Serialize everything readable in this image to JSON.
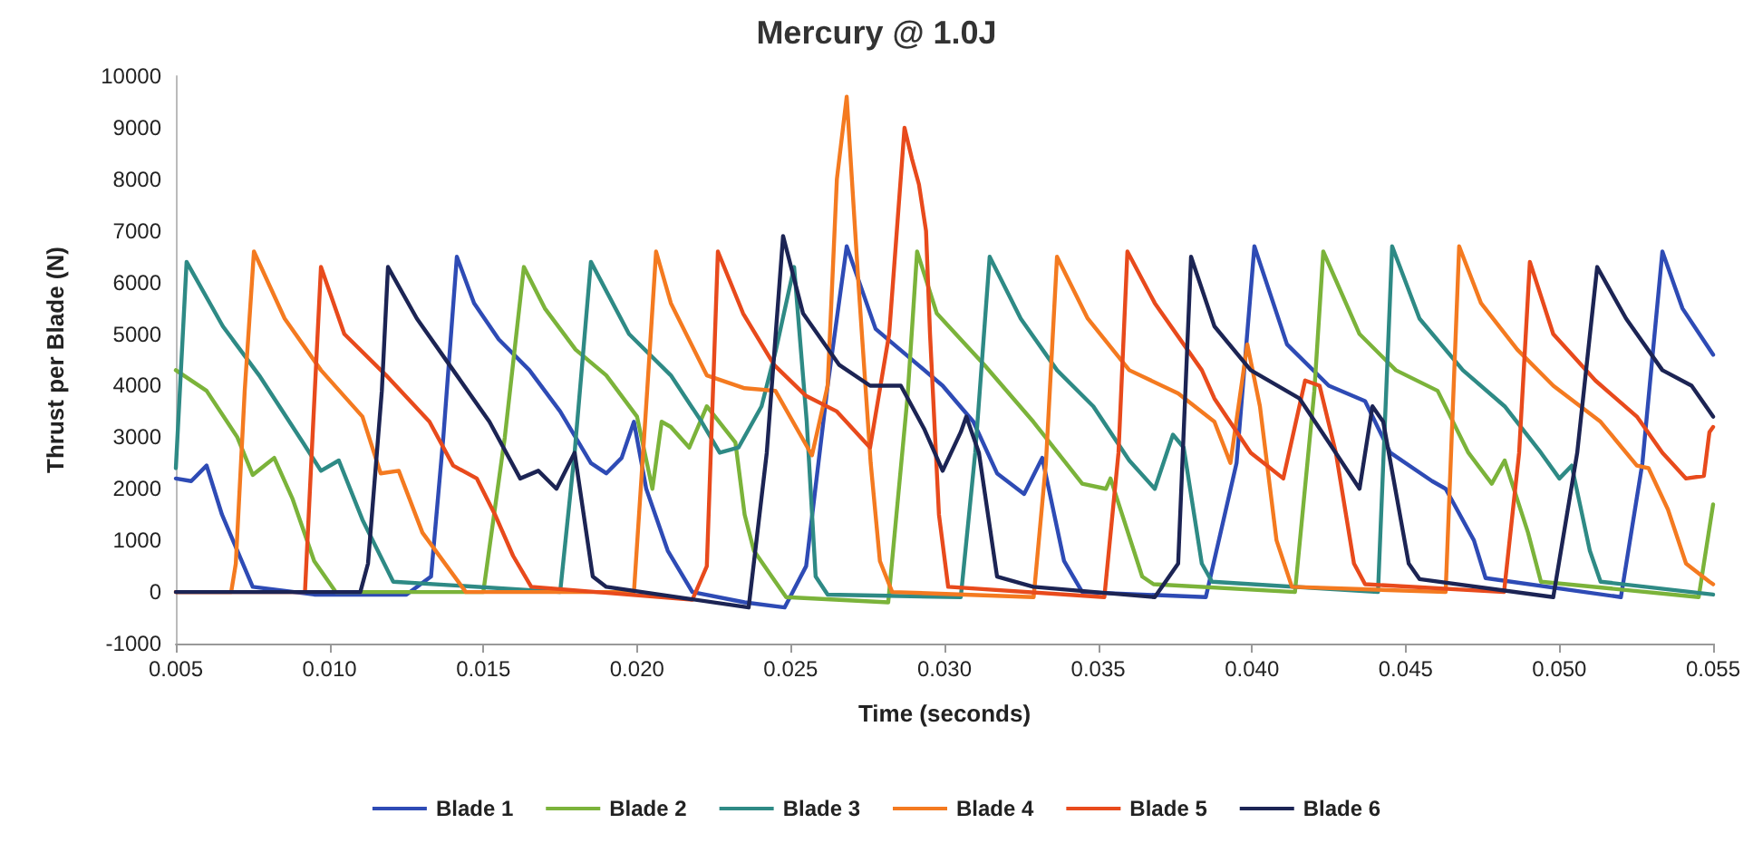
{
  "chart_data": {
    "type": "line",
    "title": "Mercury @ 1.0J",
    "xlabel": "Time (seconds)",
    "ylabel": "Thrust per Blade (N)",
    "xlim": [
      0.005,
      0.055
    ],
    "xticks": [
      0.005,
      {
        "value": 0.01,
        "label": "0.010"
      },
      0.015,
      {
        "value": 0.02,
        "label": "0.020"
      },
      0.025,
      {
        "value": 0.03,
        "label": "0.030"
      },
      0.035,
      {
        "value": 0.04,
        "label": "0.040"
      },
      0.045,
      {
        "value": 0.05,
        "label": "0.050"
      },
      0.055
    ],
    "ylim": [
      -1000,
      10000
    ],
    "yticks": [
      -1000,
      0,
      1000,
      2000,
      3000,
      4000,
      5000,
      6000,
      7000,
      8000,
      9000,
      10000
    ],
    "grid": false,
    "legend": "bottom",
    "marker": "none",
    "line_style": "solid",
    "series": [
      {
        "name": "Blade 1",
        "color": "#2e4bb5",
        "x": [
          0.005,
          0.0055,
          0.006,
          0.0065,
          0.0075,
          0.0095,
          0.0125,
          0.0133,
          0.0137,
          0.01414,
          0.0147,
          0.0155,
          0.0165,
          0.0175,
          0.0185,
          0.019,
          0.0195,
          0.0199,
          0.0203,
          0.021,
          0.0218,
          0.0235,
          0.0248,
          0.0255,
          0.0262,
          0.02682,
          0.02776,
          0.02994,
          0.03094,
          0.03171,
          0.03259,
          0.03318,
          0.03389,
          0.03448,
          0.0385,
          0.0395,
          0.04008,
          0.04114,
          0.0425,
          0.04368,
          0.0445,
          0.04586,
          0.0463,
          0.04722,
          0.0476,
          0.052,
          0.0527,
          0.05335,
          0.054,
          0.055
        ],
        "values": [
          2200,
          2150,
          2450,
          1500,
          100,
          -50,
          -50,
          300,
          3000,
          6500,
          5600,
          4900,
          4300,
          3500,
          2500,
          2300,
          2600,
          3300,
          2000,
          800,
          0,
          -200,
          -300,
          500,
          4000,
          6700,
          5100,
          4000,
          3300,
          2300,
          1900,
          2600,
          600,
          0,
          -100,
          2500,
          6700,
          4800,
          4000,
          3700,
          2700,
          2150,
          2000,
          1000,
          270,
          -100,
          2500,
          6600,
          5500,
          4600
        ]
      },
      {
        "name": "Blade 2",
        "color": "#7bb33a",
        "x": [
          0.005,
          0.006,
          0.007,
          0.0075,
          0.0082,
          0.0088,
          0.0095,
          0.0102,
          0.015,
          0.0157,
          0.01632,
          0.017,
          0.018,
          0.019,
          0.02,
          0.0205,
          0.0208,
          0.0211,
          0.0217,
          0.02227,
          0.0232,
          0.0235,
          0.0238,
          0.0245,
          0.02485,
          0.02817,
          0.0288,
          0.02911,
          0.02975,
          0.0313,
          0.03289,
          0.03448,
          0.03525,
          0.0354,
          0.03643,
          0.0368,
          0.0414,
          0.04203,
          0.04232,
          0.0435,
          0.04468,
          0.04604,
          0.04704,
          0.0478,
          0.04822,
          0.04898,
          0.0494,
          0.05453,
          0.055
        ],
        "values": [
          4300,
          3900,
          3000,
          2270,
          2600,
          1800,
          600,
          0,
          0,
          3000,
          6300,
          5500,
          4700,
          4200,
          3400,
          2000,
          3300,
          3200,
          2800,
          3600,
          2900,
          1500,
          800,
          200,
          -100,
          -200,
          3800,
          6600,
          5400,
          4400,
          3300,
          2100,
          2000,
          2200,
          300,
          150,
          0,
          3900,
          6600,
          5000,
          4300,
          3900,
          2700,
          2100,
          2550,
          1150,
          200,
          -100,
          1700
        ]
      },
      {
        "name": "Blade 3",
        "color": "#2e8a85",
        "x": [
          0.005,
          0.00535,
          0.00653,
          0.00771,
          0.00913,
          0.00972,
          0.0103,
          0.01107,
          0.01207,
          0.0175,
          0.01797,
          0.0185,
          0.01974,
          0.0211,
          0.0221,
          0.02269,
          0.0233,
          0.02405,
          0.02452,
          0.02511,
          0.02552,
          0.02581,
          0.0262,
          0.03053,
          0.031,
          0.03147,
          0.03248,
          0.03366,
          0.03484,
          0.03601,
          0.03684,
          0.03743,
          0.03778,
          0.03837,
          0.0387,
          0.0441,
          0.04456,
          0.04545,
          0.04686,
          0.04822,
          0.0494,
          0.05,
          0.0504,
          0.05099,
          0.05134,
          0.055
        ],
        "values": [
          2400,
          6400,
          5150,
          4200,
          2900,
          2350,
          2550,
          1400,
          200,
          0,
          2700,
          6400,
          5000,
          4200,
          3300,
          2700,
          2800,
          3600,
          4700,
          6300,
          3300,
          300,
          -50,
          -100,
          2700,
          6500,
          5300,
          4300,
          3600,
          2550,
          2000,
          3050,
          2800,
          550,
          200,
          0,
          6700,
          5300,
          4300,
          3600,
          2700,
          2200,
          2450,
          800,
          200,
          -50
        ]
      },
      {
        "name": "Blade 4",
        "color": "#f47a20",
        "x": [
          0.005,
          0.0068,
          0.00695,
          0.00724,
          0.00754,
          0.00854,
          0.00972,
          0.01107,
          0.01166,
          0.01225,
          0.01302,
          0.01443,
          0.0199,
          0.02033,
          0.02062,
          0.0211,
          0.02227,
          0.0235,
          0.0245,
          0.02569,
          0.0262,
          0.0265,
          0.02682,
          0.0272,
          0.0276,
          0.0279,
          0.0283,
          0.0329,
          0.0333,
          0.03366,
          0.03466,
          0.03601,
          0.0376,
          0.03878,
          0.0393,
          0.03985,
          0.04026,
          0.0408,
          0.0413,
          0.0463,
          0.04674,
          0.04745,
          0.04863,
          0.0498,
          0.05134,
          0.05252,
          0.0529,
          0.05353,
          0.05412,
          0.05488,
          0.055
        ],
        "values": [
          0,
          0,
          550,
          3900,
          6600,
          5300,
          4300,
          3400,
          2300,
          2350,
          1150,
          0,
          0,
          3900,
          6600,
          5600,
          4200,
          3950,
          3900,
          2650,
          4000,
          8000,
          9600,
          6000,
          2500,
          600,
          0,
          -100,
          2500,
          6500,
          5300,
          4300,
          3850,
          3300,
          2500,
          4800,
          3600,
          1000,
          100,
          0,
          6700,
          5600,
          4700,
          4000,
          3300,
          2450,
          2400,
          1600,
          550,
          200,
          150
        ]
      },
      {
        "name": "Blade 5",
        "color": "#e84a1c",
        "x": [
          0.005,
          0.0092,
          0.00942,
          0.00972,
          0.01048,
          0.01184,
          0.01325,
          0.01402,
          0.01479,
          0.01538,
          0.01597,
          0.01656,
          0.0218,
          0.02227,
          0.02263,
          0.02345,
          0.02446,
          0.0255,
          0.0265,
          0.02758,
          0.0282,
          0.0287,
          0.02894,
          0.02917,
          0.0294,
          0.02953,
          0.02982,
          0.03012,
          0.0352,
          0.03566,
          0.03595,
          0.03684,
          0.03837,
          0.03878,
          0.03996,
          0.04102,
          0.04173,
          0.0422,
          0.04273,
          0.04332,
          0.04368,
          0.0482,
          0.04869,
          0.04904,
          0.0498,
          0.05117,
          0.05252,
          0.05335,
          0.05412,
          0.0547,
          0.05488,
          0.055
        ],
        "values": [
          0,
          0,
          2700,
          6300,
          5000,
          4200,
          3300,
          2450,
          2200,
          1500,
          700,
          100,
          -150,
          500,
          6600,
          5400,
          4400,
          3800,
          3500,
          2800,
          5000,
          9000,
          8400,
          7900,
          7000,
          5000,
          1500,
          100,
          -100,
          2700,
          6600,
          5600,
          4300,
          3750,
          2700,
          2200,
          4100,
          4000,
          2700,
          550,
          150,
          0,
          2700,
          6400,
          5000,
          4100,
          3400,
          2700,
          2200,
          2250,
          3100,
          3200
        ]
      },
      {
        "name": "Blade 6",
        "color": "#1c2454",
        "x": [
          0.005,
          0.011,
          0.01125,
          0.0117,
          0.0119,
          0.01284,
          0.01402,
          0.0152,
          0.0162,
          0.01679,
          0.01738,
          0.01797,
          0.01856,
          0.019,
          0.02363,
          0.02422,
          0.02475,
          0.0254,
          0.02658,
          0.02758,
          0.02858,
          0.02935,
          0.02994,
          0.03053,
          0.03071,
          0.03112,
          0.03171,
          0.03289,
          0.03684,
          0.0376,
          0.03802,
          0.03878,
          0.03996,
          0.04155,
          0.0425,
          0.0435,
          0.04392,
          0.04427,
          0.0451,
          0.04545,
          0.0498,
          0.05058,
          0.05123,
          0.05217,
          0.05335,
          0.0543,
          0.055
        ],
        "values": [
          0,
          0,
          550,
          3900,
          6300,
          5300,
          4300,
          3300,
          2200,
          2350,
          2000,
          2700,
          300,
          100,
          -300,
          2700,
          6900,
          5400,
          4400,
          4000,
          4000,
          3150,
          2350,
          3100,
          3400,
          2700,
          300,
          100,
          -100,
          550,
          6500,
          5150,
          4300,
          3750,
          2900,
          2000,
          3600,
          3300,
          550,
          250,
          -100,
          2700,
          6300,
          5300,
          4300,
          4000,
          3400
        ]
      }
    ]
  }
}
